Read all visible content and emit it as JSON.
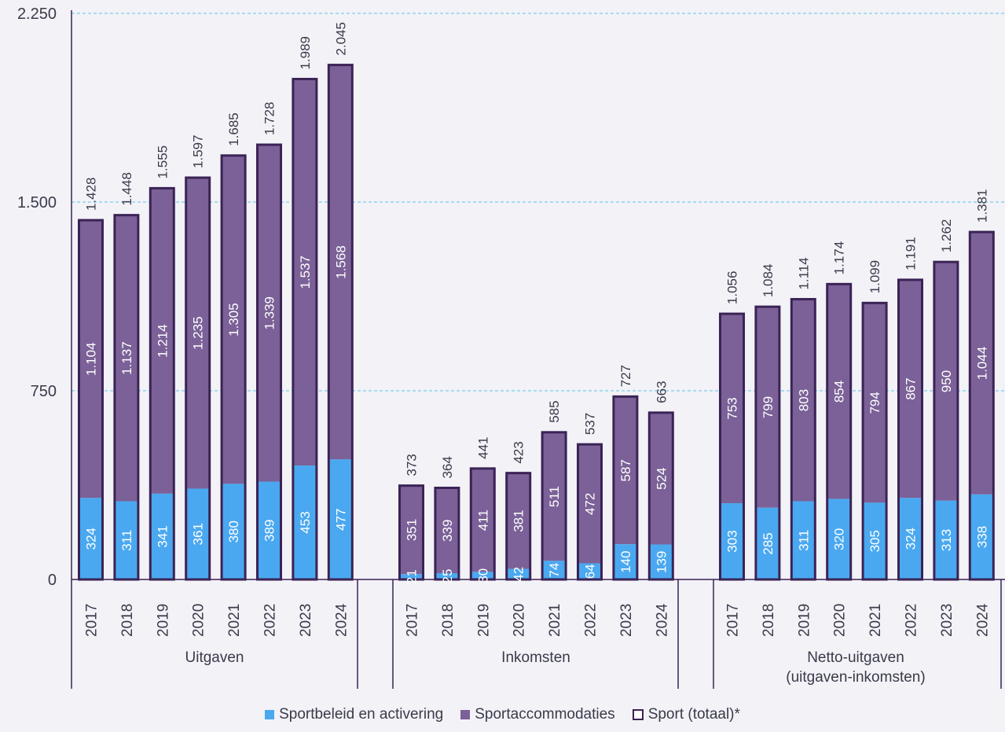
{
  "colors": {
    "beleid": "#4aa8f0",
    "accommodaties": "#7b6197",
    "total_outline": "#3b2355",
    "grid": "#5fc3e4",
    "axis": "#3b2355",
    "text": "#3a3a4a"
  },
  "chart_data": {
    "type": "bar",
    "stacked": true,
    "ylim": [
      0,
      2250
    ],
    "yticks": [
      0,
      750,
      1500,
      2250
    ],
    "ytick_labels": [
      "0",
      "750",
      "1.500",
      "2.250"
    ],
    "grid": "horizontal dashed",
    "legend_position": "bottom",
    "groups": [
      {
        "label": "Uitgaven",
        "years": [
          "2017",
          "2018",
          "2019",
          "2020",
          "2021",
          "2022",
          "2023",
          "2024"
        ],
        "beleid": [
          324,
          311,
          341,
          361,
          380,
          389,
          453,
          477
        ],
        "beleid_labels": [
          "324",
          "311",
          "341",
          "361",
          "380",
          "389",
          "453",
          "477"
        ],
        "accommodaties": [
          1104,
          1137,
          1214,
          1235,
          1305,
          1339,
          1537,
          1568
        ],
        "accommodaties_labels": [
          "1.104",
          "1.137",
          "1.214",
          "1.235",
          "1.305",
          "1.339",
          "1.537",
          "1.568"
        ],
        "totals": [
          1428,
          1448,
          1555,
          1597,
          1685,
          1728,
          1989,
          2045
        ],
        "total_labels": [
          "1.428",
          "1.448",
          "1.555",
          "1.597",
          "1.685",
          "1.728",
          "1.989",
          "2.045"
        ]
      },
      {
        "label": "Inkomsten",
        "years": [
          "2017",
          "2018",
          "2019",
          "2020",
          "2021",
          "2022",
          "2023",
          "2024"
        ],
        "beleid": [
          21,
          25,
          30,
          42,
          74,
          64,
          140,
          139
        ],
        "beleid_labels": [
          "21",
          "25",
          "30",
          "42",
          "74",
          "64",
          "140",
          "139"
        ],
        "accommodaties": [
          351,
          339,
          411,
          381,
          511,
          472,
          587,
          524
        ],
        "accommodaties_labels": [
          "351",
          "339",
          "411",
          "381",
          "511",
          "472",
          "587",
          "524"
        ],
        "totals": [
          373,
          364,
          441,
          423,
          585,
          537,
          727,
          663
        ],
        "total_labels": [
          "373",
          "364",
          "441",
          "423",
          "585",
          "537",
          "727",
          "663"
        ]
      },
      {
        "label": "Netto-uitgaven\n(uitgaven-inkomsten)",
        "years": [
          "2017",
          "2018",
          "2019",
          "2020",
          "2021",
          "2022",
          "2023",
          "2024"
        ],
        "beleid": [
          303,
          285,
          311,
          320,
          305,
          324,
          313,
          338
        ],
        "beleid_labels": [
          "303",
          "285",
          "311",
          "320",
          "305",
          "324",
          "313",
          "338"
        ],
        "accommodaties": [
          753,
          799,
          803,
          854,
          794,
          867,
          950,
          1044
        ],
        "accommodaties_labels": [
          "753",
          "799",
          "803",
          "854",
          "794",
          "867",
          "950",
          "1.044"
        ],
        "totals": [
          1056,
          1084,
          1114,
          1174,
          1099,
          1191,
          1262,
          1381
        ],
        "total_labels": [
          "1.056",
          "1.084",
          "1.114",
          "1.174",
          "1.099",
          "1.191",
          "1.262",
          "1.381"
        ]
      }
    ],
    "legend": [
      "Sportbeleid en activering",
      "Sportaccommodaties",
      "Sport (totaal)*"
    ]
  }
}
